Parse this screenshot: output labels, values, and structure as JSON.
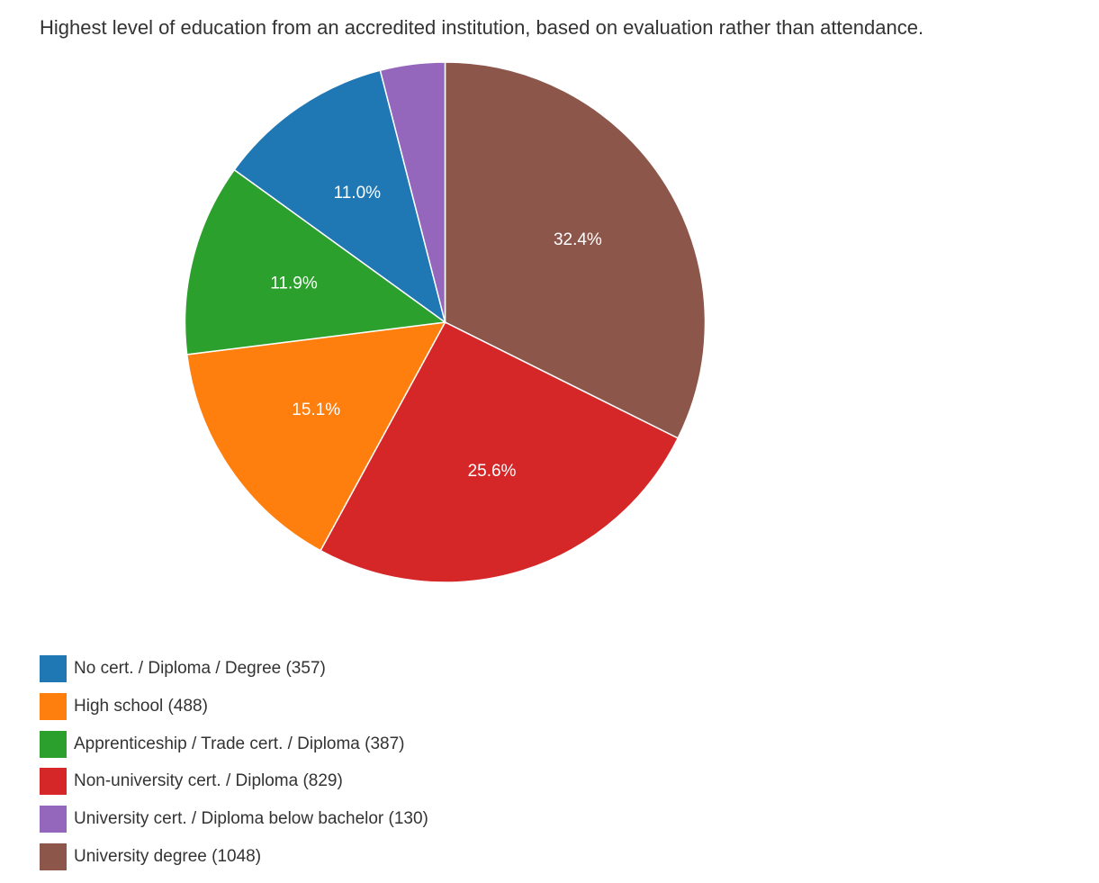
{
  "chart_data": {
    "type": "pie",
    "title": "Highest level of education from an accredited institution, based on evaluation rather than attendance.",
    "slices": [
      {
        "name": "No cert. / Diploma / Degree",
        "value": 357,
        "percent_label": "11.0%",
        "color": "#1f77b4"
      },
      {
        "name": "High school",
        "value": 488,
        "percent_label": "15.1%",
        "color": "#ff7f0e"
      },
      {
        "name": "Apprenticeship / Trade cert. / Diploma",
        "value": 387,
        "percent_label": "11.9%",
        "color": "#2ca02c"
      },
      {
        "name": "Non-university cert. / Diploma",
        "value": 829,
        "percent_label": "25.6%",
        "color": "#d62728"
      },
      {
        "name": "University cert. / Diploma below bachelor",
        "value": 130,
        "percent_label": "",
        "color": "#9467bd"
      },
      {
        "name": "University degree",
        "value": 1048,
        "percent_label": "32.4%",
        "color": "#8c564b"
      }
    ],
    "draw_order": [
      5,
      3,
      1,
      2,
      0,
      4
    ],
    "legend": {
      "position": "bottom-left",
      "items": [
        "No cert. / Diploma / Degree (357)",
        "High school (488)",
        "Apprenticeship / Trade cert. / Diploma (387)",
        "Non-university cert. / Diploma (829)",
        "University cert. / Diploma below bachelor (130)",
        "University degree (1048)"
      ]
    }
  }
}
